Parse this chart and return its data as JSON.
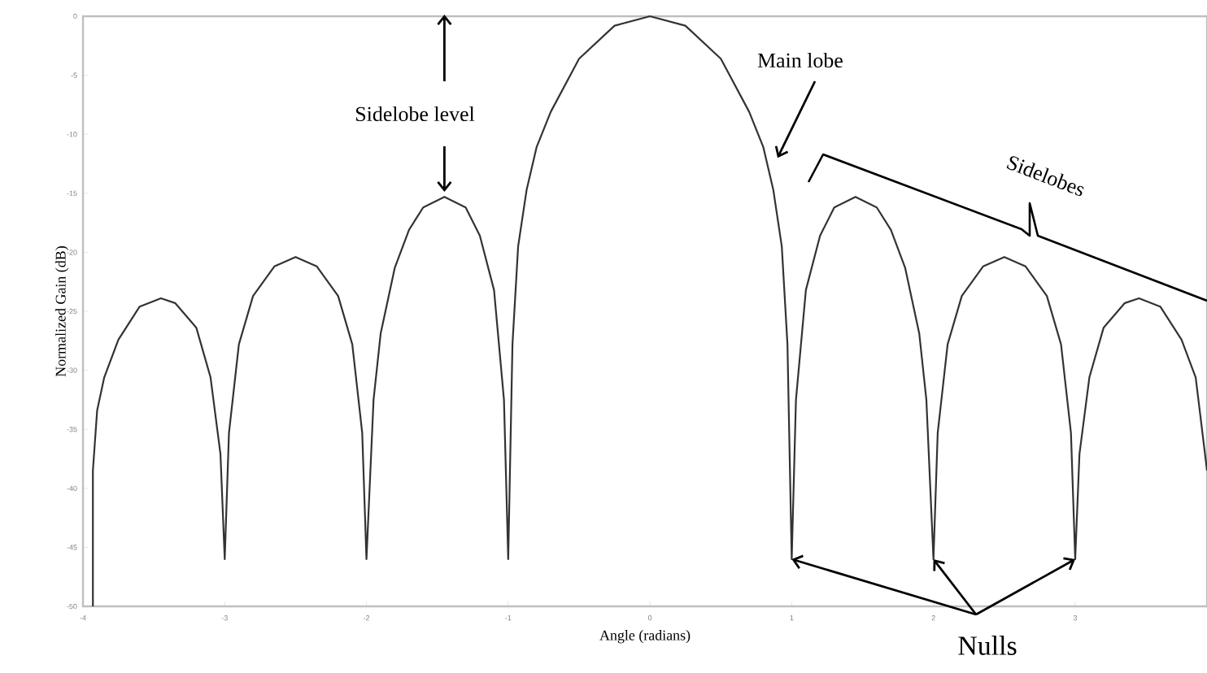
{
  "chart_data": {
    "type": "line",
    "xlabel": "Angle (radians)",
    "ylabel": "Normalized Gain (dB)",
    "annotations": [
      "Sidelobe level",
      "Main lobe",
      "Sidelobes",
      {
        "text": "Nulls",
        "x": 2,
        "y": -46
      }
    ],
    "x": [
      -3.93,
      -3.93,
      -3.9,
      -3.85,
      -3.75,
      -3.6,
      -3.45,
      -3.35,
      -3.2,
      -3.1,
      -3.03,
      -3.0,
      -2.97,
      -2.9,
      -2.8,
      -2.65,
      -2.5,
      -2.35,
      -2.2,
      -2.1,
      -2.03,
      -2.0,
      -1.95,
      -1.9,
      -1.8,
      -1.7,
      -1.6,
      -1.45,
      -1.3,
      -1.2,
      -1.1,
      -1.03,
      -1.0,
      -0.97,
      -0.93,
      -0.87,
      -0.8,
      -0.7,
      -0.5,
      -0.25,
      0,
      0.25,
      0.5,
      0.7,
      0.8,
      0.87,
      0.93,
      0.97,
      1.0,
      1.03,
      1.1,
      1.2,
      1.3,
      1.45,
      1.6,
      1.7,
      1.8,
      1.9,
      1.95,
      2.0,
      2.03,
      2.1,
      2.2,
      2.35,
      2.5,
      2.65,
      2.8,
      2.9,
      2.97,
      3.0,
      3.03,
      3.1,
      3.2,
      3.35,
      3.45,
      3.6,
      3.75,
      3.85,
      3.93
    ],
    "series": [
      {
        "color": "#333333",
        "values": [
          -50,
          -38.5,
          -33.4,
          -30.6,
          -27.4,
          -24.6,
          -23.9,
          -24.3,
          -26.4,
          -30.6,
          -37.1,
          -46,
          -35.3,
          -27.8,
          -23.7,
          -21.2,
          -20.4,
          -21.2,
          -23.7,
          -27.8,
          -35.3,
          -46,
          -32.5,
          -26.9,
          -21.3,
          -18.1,
          -16.2,
          -15.3,
          -16.2,
          -18.6,
          -23.2,
          -32.5,
          -46,
          -27.8,
          -19.5,
          -14.7,
          -11.1,
          -8.1,
          -3.6,
          -0.8,
          0,
          -0.8,
          -3.6,
          -8.1,
          -11.1,
          -14.7,
          -19.5,
          -27.8,
          -46,
          -32.5,
          -23.2,
          -18.6,
          -16.2,
          -15.3,
          -16.2,
          -18.1,
          -21.3,
          -26.9,
          -32.5,
          -46,
          -35.3,
          -27.8,
          -23.7,
          -21.2,
          -20.4,
          -21.2,
          -23.7,
          -27.8,
          -35.3,
          -46,
          -37.1,
          -30.6,
          -26.4,
          -24.3,
          -23.9,
          -24.6,
          -27.4,
          -30.6,
          -38.5
        ]
      }
    ],
    "xlim": [
      -4,
      3.93
    ],
    "ylim": [
      -50,
      0
    ],
    "xticks": [
      -4,
      -3,
      -2,
      -1,
      0,
      1,
      2,
      3
    ],
    "yticks": [
      -50,
      -45,
      -40,
      -35,
      -30,
      -25,
      -20,
      -15,
      -10,
      -5,
      0
    ]
  }
}
